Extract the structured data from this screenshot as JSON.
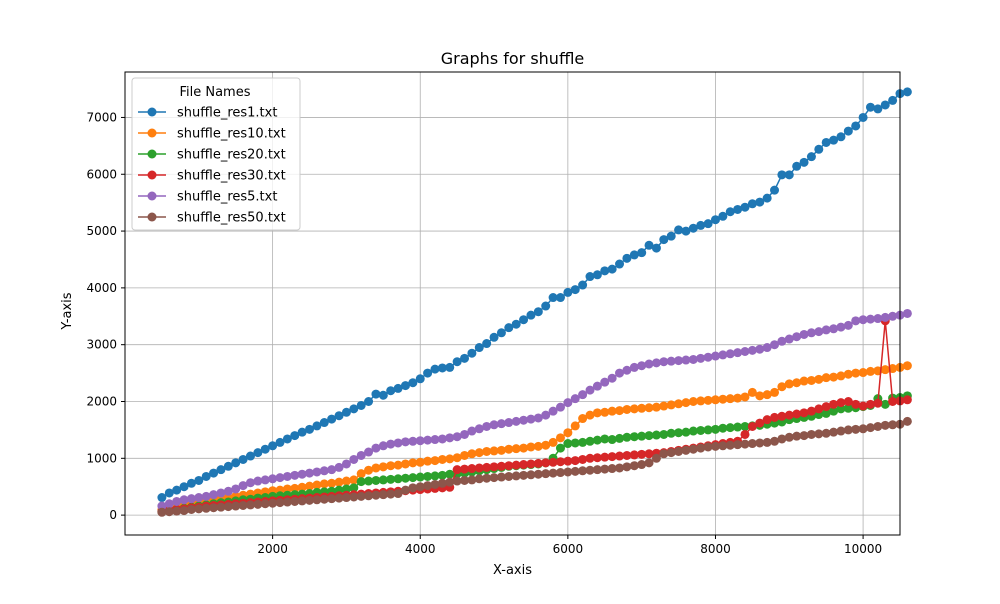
{
  "chart_data": {
    "type": "line",
    "title": "Graphs for shuffle",
    "xlabel": "X-axis",
    "ylabel": "Y-axis",
    "xlim": [
      0,
      10500
    ],
    "ylim": [
      -350,
      7800
    ],
    "xticks": [
      2000,
      4000,
      6000,
      8000,
      10000
    ],
    "yticks": [
      0,
      1000,
      2000,
      3000,
      4000,
      5000,
      6000,
      7000
    ],
    "xtick_labels": [
      "2000",
      "4000",
      "6000",
      "8000",
      "10000"
    ],
    "ytick_labels": [
      "0",
      "1000",
      "2000",
      "3000",
      "4000",
      "5000",
      "6000",
      "7000"
    ],
    "grid": true,
    "legend": {
      "title": "File Names",
      "position": "top-left"
    },
    "marker": "circle",
    "series": [
      {
        "name": "shuffle_res1.txt",
        "color": "#1f77b4",
        "x_start": 500,
        "x_step": 100,
        "values": [
          310,
          390,
          440,
          500,
          560,
          610,
          680,
          740,
          800,
          860,
          920,
          980,
          1040,
          1100,
          1160,
          1220,
          1280,
          1340,
          1400,
          1460,
          1510,
          1570,
          1630,
          1690,
          1750,
          1810,
          1870,
          1930,
          2000,
          2130,
          2110,
          2190,
          2230,
          2280,
          2330,
          2400,
          2500,
          2570,
          2590,
          2600,
          2700,
          2760,
          2850,
          2950,
          3020,
          3130,
          3210,
          3300,
          3360,
          3440,
          3520,
          3580,
          3680,
          3830,
          3830,
          3920,
          3970,
          4050,
          4200,
          4230,
          4300,
          4330,
          4420,
          4520,
          4580,
          4620,
          4750,
          4700,
          4850,
          4910,
          5020,
          5000,
          5050,
          5100,
          5130,
          5200,
          5260,
          5340,
          5380,
          5420,
          5480,
          5510,
          5580,
          5720,
          5990,
          5990,
          6140,
          6210,
          6310,
          6440,
          6560,
          6600,
          6660,
          6760,
          6850,
          7000,
          7180,
          7150,
          7220,
          7300,
          7420,
          7450
        ]
      },
      {
        "name": "shuffle_res10.txt",
        "color": "#ff7f0e",
        "x_start": 500,
        "x_step": 100,
        "values": [
          90,
          120,
          150,
          170,
          200,
          220,
          250,
          270,
          290,
          310,
          330,
          350,
          370,
          390,
          410,
          430,
          440,
          460,
          470,
          490,
          510,
          530,
          550,
          560,
          580,
          600,
          620,
          730,
          790,
          830,
          850,
          870,
          880,
          900,
          920,
          930,
          950,
          960,
          980,
          990,
          1010,
          1050,
          1080,
          1100,
          1120,
          1130,
          1140,
          1160,
          1170,
          1180,
          1200,
          1210,
          1230,
          1280,
          1360,
          1450,
          1570,
          1700,
          1760,
          1800,
          1810,
          1830,
          1840,
          1860,
          1870,
          1880,
          1890,
          1900,
          1920,
          1940,
          1960,
          1980,
          2000,
          2010,
          2020,
          2030,
          2040,
          2050,
          2060,
          2080,
          2160,
          2100,
          2120,
          2160,
          2260,
          2310,
          2330,
          2360,
          2370,
          2390,
          2420,
          2430,
          2450,
          2480,
          2500,
          2510,
          2530,
          2540,
          2560,
          2580,
          2600,
          2630
        ]
      },
      {
        "name": "shuffle_res20.txt",
        "color": "#2ca02c",
        "x_start": 500,
        "x_step": 100,
        "values": [
          60,
          80,
          100,
          120,
          140,
          160,
          180,
          200,
          220,
          230,
          250,
          270,
          280,
          300,
          310,
          330,
          340,
          350,
          360,
          370,
          380,
          400,
          410,
          420,
          440,
          460,
          480,
          590,
          600,
          610,
          620,
          630,
          640,
          650,
          660,
          670,
          680,
          690,
          700,
          720,
          730,
          740,
          760,
          780,
          800,
          820,
          840,
          860,
          870,
          880,
          890,
          900,
          920,
          1000,
          1180,
          1260,
          1270,
          1280,
          1300,
          1320,
          1340,
          1330,
          1350,
          1370,
          1380,
          1390,
          1400,
          1410,
          1420,
          1440,
          1450,
          1460,
          1480,
          1490,
          1500,
          1510,
          1530,
          1540,
          1550,
          1560,
          1570,
          1580,
          1600,
          1620,
          1640,
          1680,
          1700,
          1720,
          1740,
          1770,
          1790,
          1830,
          1870,
          1880,
          1890,
          1910,
          1930,
          2050,
          1950,
          2060,
          2070,
          2100
        ]
      },
      {
        "name": "shuffle_res30.txt",
        "color": "#d62728",
        "x_start": 500,
        "x_step": 100,
        "values": [
          60,
          80,
          100,
          110,
          130,
          140,
          160,
          170,
          180,
          190,
          200,
          210,
          220,
          230,
          240,
          250,
          260,
          270,
          280,
          290,
          300,
          310,
          320,
          330,
          340,
          350,
          360,
          370,
          380,
          390,
          400,
          410,
          420,
          430,
          440,
          450,
          460,
          470,
          480,
          490,
          800,
          810,
          820,
          830,
          840,
          850,
          860,
          870,
          880,
          890,
          900,
          910,
          920,
          930,
          940,
          950,
          960,
          980,
          1000,
          1010,
          1020,
          1030,
          1040,
          1050,
          1060,
          1070,
          1080,
          1090,
          1100,
          1120,
          1140,
          1160,
          1180,
          1200,
          1220,
          1240,
          1260,
          1280,
          1300,
          1420,
          1560,
          1620,
          1680,
          1720,
          1740,
          1760,
          1780,
          1800,
          1830,
          1870,
          1910,
          1950,
          1980,
          2000,
          1950,
          1920,
          1950,
          1970,
          3420,
          2000,
          2010,
          2030
        ]
      },
      {
        "name": "shuffle_res5.txt",
        "color": "#9467bd",
        "x_start": 500,
        "x_step": 100,
        "values": [
          160,
          200,
          240,
          270,
          290,
          310,
          330,
          360,
          390,
          420,
          460,
          520,
          570,
          600,
          620,
          640,
          660,
          680,
          700,
          720,
          740,
          760,
          780,
          800,
          840,
          900,
          980,
          1050,
          1110,
          1180,
          1220,
          1250,
          1270,
          1290,
          1300,
          1310,
          1320,
          1330,
          1340,
          1360,
          1380,
          1420,
          1480,
          1520,
          1560,
          1590,
          1610,
          1630,
          1650,
          1670,
          1690,
          1710,
          1760,
          1830,
          1900,
          1980,
          2050,
          2120,
          2200,
          2270,
          2340,
          2410,
          2500,
          2550,
          2600,
          2630,
          2660,
          2680,
          2700,
          2710,
          2720,
          2730,
          2740,
          2760,
          2780,
          2800,
          2820,
          2840,
          2860,
          2880,
          2900,
          2920,
          2950,
          3000,
          3060,
          3100,
          3140,
          3180,
          3210,
          3230,
          3260,
          3280,
          3310,
          3340,
          3420,
          3440,
          3450,
          3460,
          3480,
          3500,
          3520,
          3550
        ]
      },
      {
        "name": "shuffle_res50.txt",
        "color": "#8c564b",
        "x_start": 500,
        "x_step": 100,
        "values": [
          50,
          60,
          70,
          80,
          100,
          110,
          120,
          130,
          140,
          150,
          160,
          170,
          180,
          190,
          200,
          210,
          220,
          230,
          240,
          250,
          260,
          270,
          280,
          290,
          300,
          310,
          320,
          330,
          340,
          350,
          360,
          370,
          380,
          440,
          480,
          500,
          520,
          540,
          560,
          580,
          600,
          610,
          620,
          640,
          650,
          660,
          670,
          680,
          690,
          700,
          710,
          720,
          730,
          740,
          750,
          760,
          770,
          780,
          790,
          800,
          810,
          820,
          830,
          850,
          870,
          890,
          920,
          1000,
          1080,
          1100,
          1120,
          1140,
          1160,
          1180,
          1200,
          1210,
          1220,
          1230,
          1240,
          1250,
          1260,
          1270,
          1280,
          1300,
          1340,
          1370,
          1390,
          1400,
          1420,
          1430,
          1440,
          1460,
          1480,
          1500,
          1510,
          1520,
          1540,
          1560,
          1580,
          1590,
          1600,
          1650
        ]
      }
    ]
  }
}
